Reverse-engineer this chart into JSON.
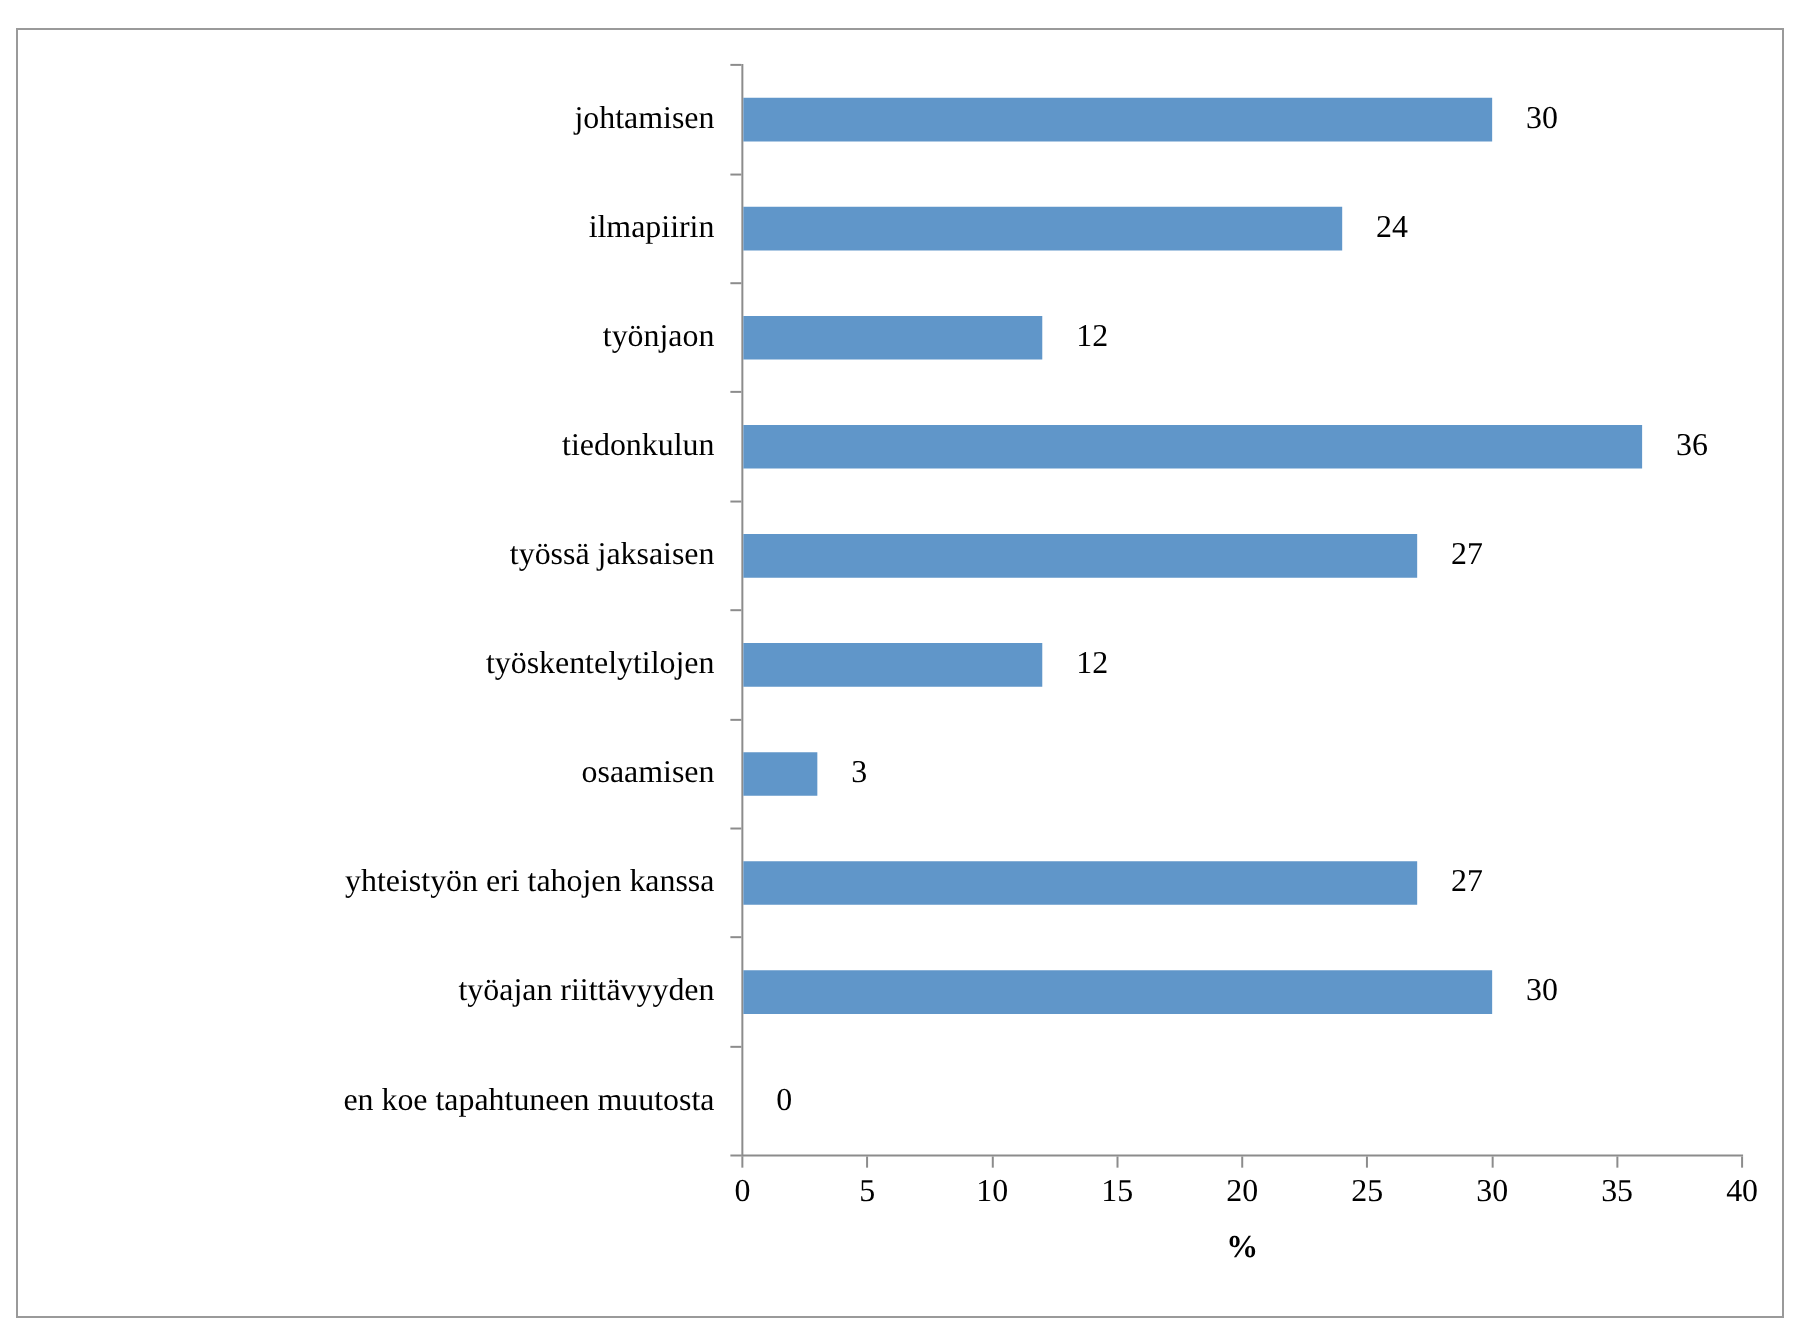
{
  "chart_data": {
    "type": "bar",
    "orientation": "horizontal",
    "xlabel": "%",
    "categories": [
      "johtamisen",
      "ilmapiirin",
      "työnjaon",
      "tiedonkulun",
      "työssä jaksaisen",
      "työskentelytilojen",
      "osaamisen",
      "yhteistyön eri tahojen kanssa",
      "työajan riittävyyden",
      "en koe tapahtuneen muutosta"
    ],
    "values": [
      30,
      24,
      12,
      36,
      27,
      12,
      3,
      27,
      30,
      0
    ],
    "color": "#6096c9",
    "xlim": [
      0,
      40
    ],
    "xticks": [
      0,
      5,
      10,
      15,
      20,
      25,
      30,
      35,
      40
    ],
    "grid": false,
    "legend": false,
    "data_labels": true
  }
}
